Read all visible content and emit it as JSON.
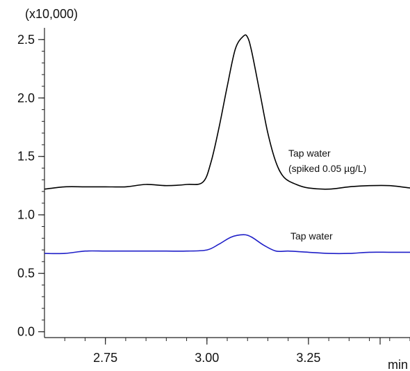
{
  "chart_data": {
    "type": "line",
    "title": "",
    "y_multiplier_label": "(x10,000)",
    "xlabel": "min",
    "ylabel": "",
    "xlim": [
      2.6,
      3.5
    ],
    "ylim": [
      -0.05,
      2.6
    ],
    "grid": false,
    "x_ticks": [
      {
        "value": 2.75,
        "label": "2.75"
      },
      {
        "value": 3.0,
        "label": "3.00"
      },
      {
        "value": 3.25,
        "label": "3.25"
      }
    ],
    "y_ticks": [
      {
        "value": 0.0,
        "label": "0.0"
      },
      {
        "value": 0.5,
        "label": "0.5"
      },
      {
        "value": 1.0,
        "label": "1.0"
      },
      {
        "value": 1.5,
        "label": "1.5"
      },
      {
        "value": 2.0,
        "label": "2.0"
      },
      {
        "value": 2.5,
        "label": "2.5"
      }
    ],
    "series": [
      {
        "color": "#000000",
        "annotation_lines": [
          "Tap water",
          "(spiked 0.05 µg/L)"
        ],
        "x": [
          2.6,
          2.65,
          2.7,
          2.75,
          2.8,
          2.85,
          2.9,
          2.95,
          2.99,
          3.01,
          3.03,
          3.05,
          3.07,
          3.09,
          3.1,
          3.11,
          3.13,
          3.15,
          3.17,
          3.19,
          3.22,
          3.25,
          3.3,
          3.35,
          3.4,
          3.45,
          3.5
        ],
        "y": [
          1.22,
          1.24,
          1.24,
          1.24,
          1.24,
          1.26,
          1.25,
          1.26,
          1.28,
          1.45,
          1.75,
          2.1,
          2.42,
          2.53,
          2.52,
          2.4,
          2.05,
          1.7,
          1.45,
          1.32,
          1.26,
          1.23,
          1.22,
          1.24,
          1.25,
          1.25,
          1.23
        ]
      },
      {
        "color": "#1f1fc8",
        "annotation_lines": [
          "Tap water"
        ],
        "x": [
          2.6,
          2.65,
          2.7,
          2.75,
          2.8,
          2.85,
          2.9,
          2.95,
          3.0,
          3.03,
          3.06,
          3.09,
          3.11,
          3.14,
          3.17,
          3.2,
          3.25,
          3.3,
          3.35,
          3.4,
          3.45,
          3.5
        ],
        "y": [
          0.67,
          0.67,
          0.69,
          0.69,
          0.69,
          0.69,
          0.69,
          0.69,
          0.7,
          0.75,
          0.81,
          0.83,
          0.81,
          0.74,
          0.69,
          0.69,
          0.68,
          0.67,
          0.67,
          0.68,
          0.68,
          0.68
        ]
      }
    ]
  }
}
